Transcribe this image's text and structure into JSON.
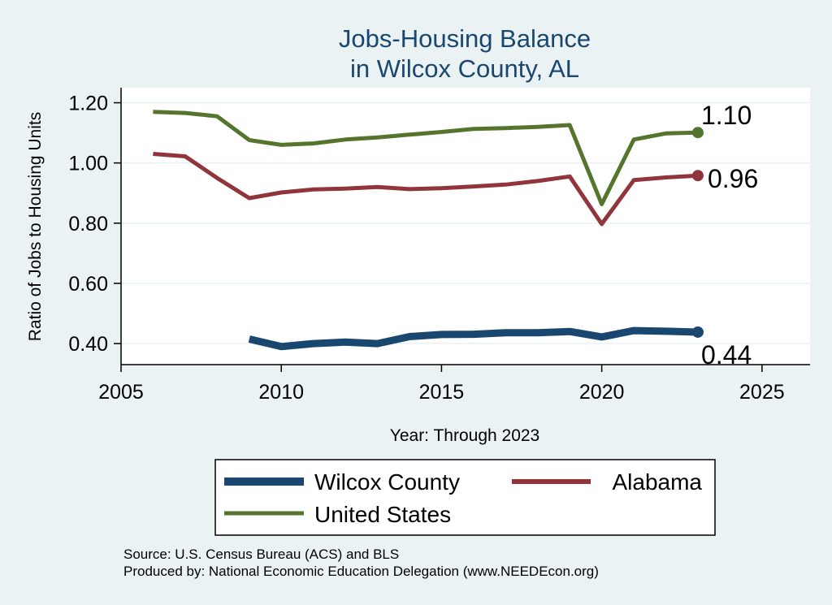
{
  "chart_data": {
    "type": "line",
    "title": [
      "Jobs-Housing Balance",
      "in Wilcox County, AL"
    ],
    "xlabel": "Year: Through 2023",
    "ylabel": "Ratio of Jobs to Housing Units",
    "xlim": [
      2005,
      2026.5
    ],
    "ylim": [
      0.33,
      1.25
    ],
    "xticks": [
      2005,
      2010,
      2015,
      2020,
      2025
    ],
    "yticks": [
      0.4,
      0.6,
      0.8,
      1.0,
      1.2
    ],
    "ytick_labels": [
      "0.40",
      "0.60",
      "0.80",
      "1.00",
      "1.20"
    ],
    "grid": true,
    "legend_position": "bottom",
    "series": [
      {
        "name": "Wilcox County",
        "color": "#1a476f",
        "end_label": "0.44",
        "x": [
          2009,
          2010,
          2011,
          2012,
          2013,
          2014,
          2015,
          2016,
          2017,
          2018,
          2019,
          2020,
          2021,
          2022,
          2023
        ],
        "y": [
          0.415,
          0.39,
          0.4,
          0.405,
          0.4,
          0.423,
          0.43,
          0.431,
          0.436,
          0.436,
          0.44,
          0.422,
          0.443,
          0.441,
          0.438
        ]
      },
      {
        "name": "Alabama",
        "color": "#90353b",
        "end_label": "0.96",
        "x": [
          2006,
          2007,
          2008,
          2009,
          2010,
          2011,
          2012,
          2013,
          2014,
          2015,
          2016,
          2017,
          2018,
          2019,
          2020,
          2021,
          2022,
          2023
        ],
        "y": [
          1.03,
          1.022,
          0.95,
          0.883,
          0.902,
          0.912,
          0.915,
          0.92,
          0.913,
          0.916,
          0.922,
          0.928,
          0.94,
          0.955,
          0.797,
          0.943,
          0.952,
          0.958
        ]
      },
      {
        "name": "United States",
        "color": "#55752f",
        "end_label": "1.10",
        "x": [
          2006,
          2007,
          2008,
          2009,
          2010,
          2011,
          2012,
          2013,
          2014,
          2015,
          2016,
          2017,
          2018,
          2019,
          2020,
          2021,
          2022,
          2023
        ],
        "y": [
          1.17,
          1.166,
          1.155,
          1.076,
          1.06,
          1.065,
          1.078,
          1.085,
          1.094,
          1.103,
          1.113,
          1.116,
          1.12,
          1.126,
          0.863,
          1.078,
          1.098,
          1.101
        ]
      }
    ],
    "source": "Source: U.S. Census Bureau (ACS) and BLS",
    "produced_by": "Produced by: National Economic Education Delegation (www.NEEDEcon.org)"
  }
}
